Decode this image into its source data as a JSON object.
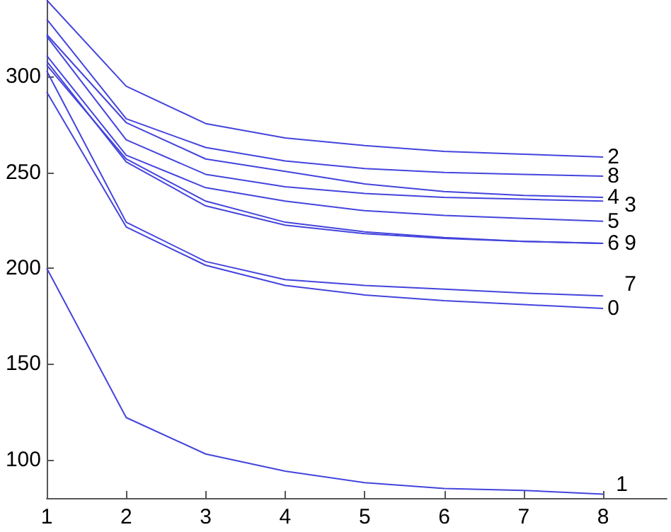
{
  "chart_data": {
    "type": "line",
    "x": [
      1,
      2,
      3,
      4,
      5,
      6,
      7,
      8
    ],
    "xlim": [
      1,
      8.8
    ],
    "xticks": [
      1,
      2,
      3,
      4,
      5,
      6,
      7,
      8
    ],
    "ylim": [
      80,
      340
    ],
    "yticks": [
      100,
      150,
      200,
      250,
      300
    ],
    "grid": false,
    "legend": false,
    "marker": "none",
    "line_style": "solid",
    "series": [
      {
        "name": "0",
        "color": "#4444dd",
        "values": [
          292,
          221.5,
          201.5,
          191,
          186,
          183,
          181,
          179
        ]
      },
      {
        "name": "1",
        "color": "#4444dd",
        "values": [
          200,
          122,
          103,
          94,
          88,
          85,
          84,
          82
        ]
      },
      {
        "name": "2",
        "color": "#4444dd",
        "values": [
          340,
          295,
          275.5,
          268,
          264,
          261,
          259.5,
          258
        ]
      },
      {
        "name": "3",
        "color": "#4444dd",
        "values": [
          321,
          267,
          249,
          242.5,
          239,
          237,
          236,
          235
        ]
      },
      {
        "name": "4",
        "color": "#4444dd",
        "values": [
          322,
          276,
          257,
          250.5,
          244,
          240,
          238,
          237
        ]
      },
      {
        "name": "5",
        "color": "#4444dd",
        "values": [
          311,
          259,
          242,
          235,
          230,
          227.5,
          226,
          224.5
        ]
      },
      {
        "name": "6",
        "color": "#4444dd",
        "values": [
          306,
          257,
          235,
          224,
          219,
          216,
          214,
          213
        ]
      },
      {
        "name": "7",
        "color": "#4444dd",
        "values": [
          303,
          224,
          203.5,
          194,
          191,
          189,
          187,
          185.5
        ]
      },
      {
        "name": "8",
        "color": "#4444dd",
        "values": [
          330,
          278,
          263,
          256,
          252,
          250,
          249,
          248
        ]
      },
      {
        "name": "9",
        "color": "#4444dd",
        "values": [
          308,
          255.5,
          232.5,
          222.5,
          218,
          215.5,
          214,
          213
        ]
      }
    ]
  }
}
